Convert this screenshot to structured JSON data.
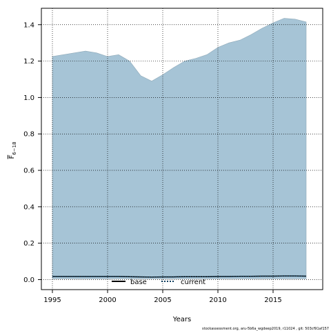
{
  "chart_data": {
    "type": "area",
    "xlabel": "Years",
    "ylabel": "F",
    "ylabel_subscript": "6−18",
    "xlim": [
      1994,
      2019.5
    ],
    "ylim": [
      -0.055,
      1.49
    ],
    "x_ticks": [
      1995,
      2000,
      2005,
      2010,
      2015
    ],
    "y_ticks": [
      0.0,
      0.2,
      0.4,
      0.6,
      0.8,
      1.0,
      1.2,
      1.4
    ],
    "y_tick_labels": [
      "0.0",
      "0.2",
      "0.4",
      "0.6",
      "0.8",
      "1.0",
      "1.2",
      "1.4"
    ],
    "grid": true,
    "area": {
      "color": "#a6c4d6",
      "x": [
        1995,
        1996,
        1997,
        1998,
        1999,
        2000,
        2001,
        2002,
        2003,
        2004,
        2005,
        2006,
        2007,
        2008,
        2009,
        2010,
        2011,
        2012,
        2013,
        2014,
        2015,
        2016,
        2017,
        2018
      ],
      "lower": [
        0.005,
        0.005,
        0.005,
        0.005,
        0.005,
        0.005,
        0.005,
        0.005,
        0.005,
        0.005,
        0.005,
        0.005,
        0.005,
        0.005,
        0.005,
        0.005,
        0.005,
        0.005,
        0.005,
        0.005,
        0.005,
        0.005,
        0.005,
        0.005
      ],
      "upper": [
        1.225,
        1.235,
        1.245,
        1.255,
        1.245,
        1.225,
        1.235,
        1.2,
        1.12,
        1.09,
        1.125,
        1.165,
        1.2,
        1.215,
        1.235,
        1.275,
        1.3,
        1.315,
        1.345,
        1.38,
        1.41,
        1.435,
        1.43,
        1.415
      ]
    },
    "series": [
      {
        "name": "base",
        "style": "solid",
        "color": "#000000",
        "x": [
          1995,
          1996,
          1997,
          1998,
          1999,
          2000,
          2001,
          2002,
          2003,
          2004,
          2005,
          2006,
          2007,
          2008,
          2009,
          2010,
          2011,
          2012,
          2013,
          2014,
          2015,
          2016,
          2017,
          2018
        ],
        "values": [
          0.017,
          0.017,
          0.017,
          0.017,
          0.017,
          0.017,
          0.017,
          0.016,
          0.015,
          0.014,
          0.015,
          0.015,
          0.016,
          0.016,
          0.016,
          0.017,
          0.017,
          0.018,
          0.018,
          0.019,
          0.019,
          0.02,
          0.02,
          0.019
        ]
      },
      {
        "name": "current",
        "style": "dotted",
        "color": "#0b3c5d",
        "x": [
          1995,
          1996,
          1997,
          1998,
          1999,
          2000,
          2001,
          2002,
          2003,
          2004,
          2005,
          2006,
          2007,
          2008,
          2009,
          2010,
          2011,
          2012,
          2013,
          2014,
          2015,
          2016,
          2017,
          2018
        ],
        "values": [
          0.017,
          0.017,
          0.017,
          0.017,
          0.017,
          0.017,
          0.017,
          0.016,
          0.015,
          0.014,
          0.015,
          0.015,
          0.016,
          0.016,
          0.016,
          0.017,
          0.017,
          0.018,
          0.018,
          0.019,
          0.019,
          0.02,
          0.02,
          0.019
        ]
      }
    ],
    "legend_placement": "bottom-center"
  },
  "footer": "stockassessment.org,  aru-5b6a_wgdeep2019,  r11024 ,  git: 503cf91af157"
}
